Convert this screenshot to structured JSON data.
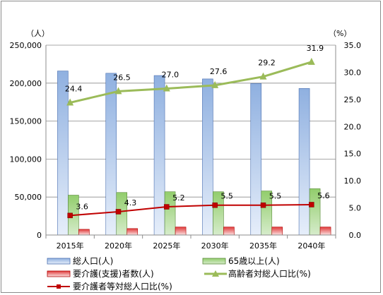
{
  "chart_data": {
    "type": "bar",
    "categories": [
      "2015年",
      "2020年",
      "2025年",
      "2030年",
      "2035年",
      "2040年"
    ],
    "left_axis": {
      "unit_label": "（人）",
      "ylim": [
        0,
        250000
      ],
      "ticks": [
        "0",
        "50,000",
        "100,000",
        "150,000",
        "200,000",
        "250,000"
      ]
    },
    "right_axis": {
      "unit_label": "（%）",
      "ylim": [
        0,
        35
      ],
      "ticks": [
        "0.0",
        "5.0",
        "10.0",
        "15.0",
        "20.0",
        "25.0",
        "30.0",
        "35.0"
      ]
    },
    "grid": true,
    "legend_position": "bottom",
    "series": [
      {
        "name": "総人口(人)",
        "type": "bar",
        "axis": "left",
        "color": "#8fb0e0",
        "values": [
          216000,
          213000,
          210000,
          205500,
          199500,
          193000
        ]
      },
      {
        "name": "65歳以上(人)",
        "type": "bar",
        "axis": "left",
        "color": "#9bd07a",
        "values": [
          52500,
          56000,
          57000,
          57000,
          58000,
          61000
        ]
      },
      {
        "name": "要介護(支援)者数(人)",
        "type": "bar",
        "axis": "left",
        "color": "#e84848",
        "values": [
          7500,
          8500,
          10500,
          10500,
          10500,
          10500
        ]
      },
      {
        "name": "高齢者対総人口比(%)",
        "type": "line",
        "axis": "right",
        "color": "#9bbb59",
        "values": [
          24.4,
          26.5,
          27.0,
          27.6,
          29.2,
          31.9
        ],
        "labels": [
          "24.4",
          "26.5",
          "27.0",
          "27.6",
          "29.2",
          "31.9"
        ]
      },
      {
        "name": "要介護者等対総人口比(%)",
        "type": "line",
        "axis": "right",
        "color": "#c00000",
        "values": [
          3.6,
          4.3,
          5.2,
          5.5,
          5.5,
          5.6
        ],
        "labels": [
          "3.6",
          "4.3",
          "5.2",
          "5.5",
          "5.5",
          "5.6"
        ]
      }
    ]
  }
}
